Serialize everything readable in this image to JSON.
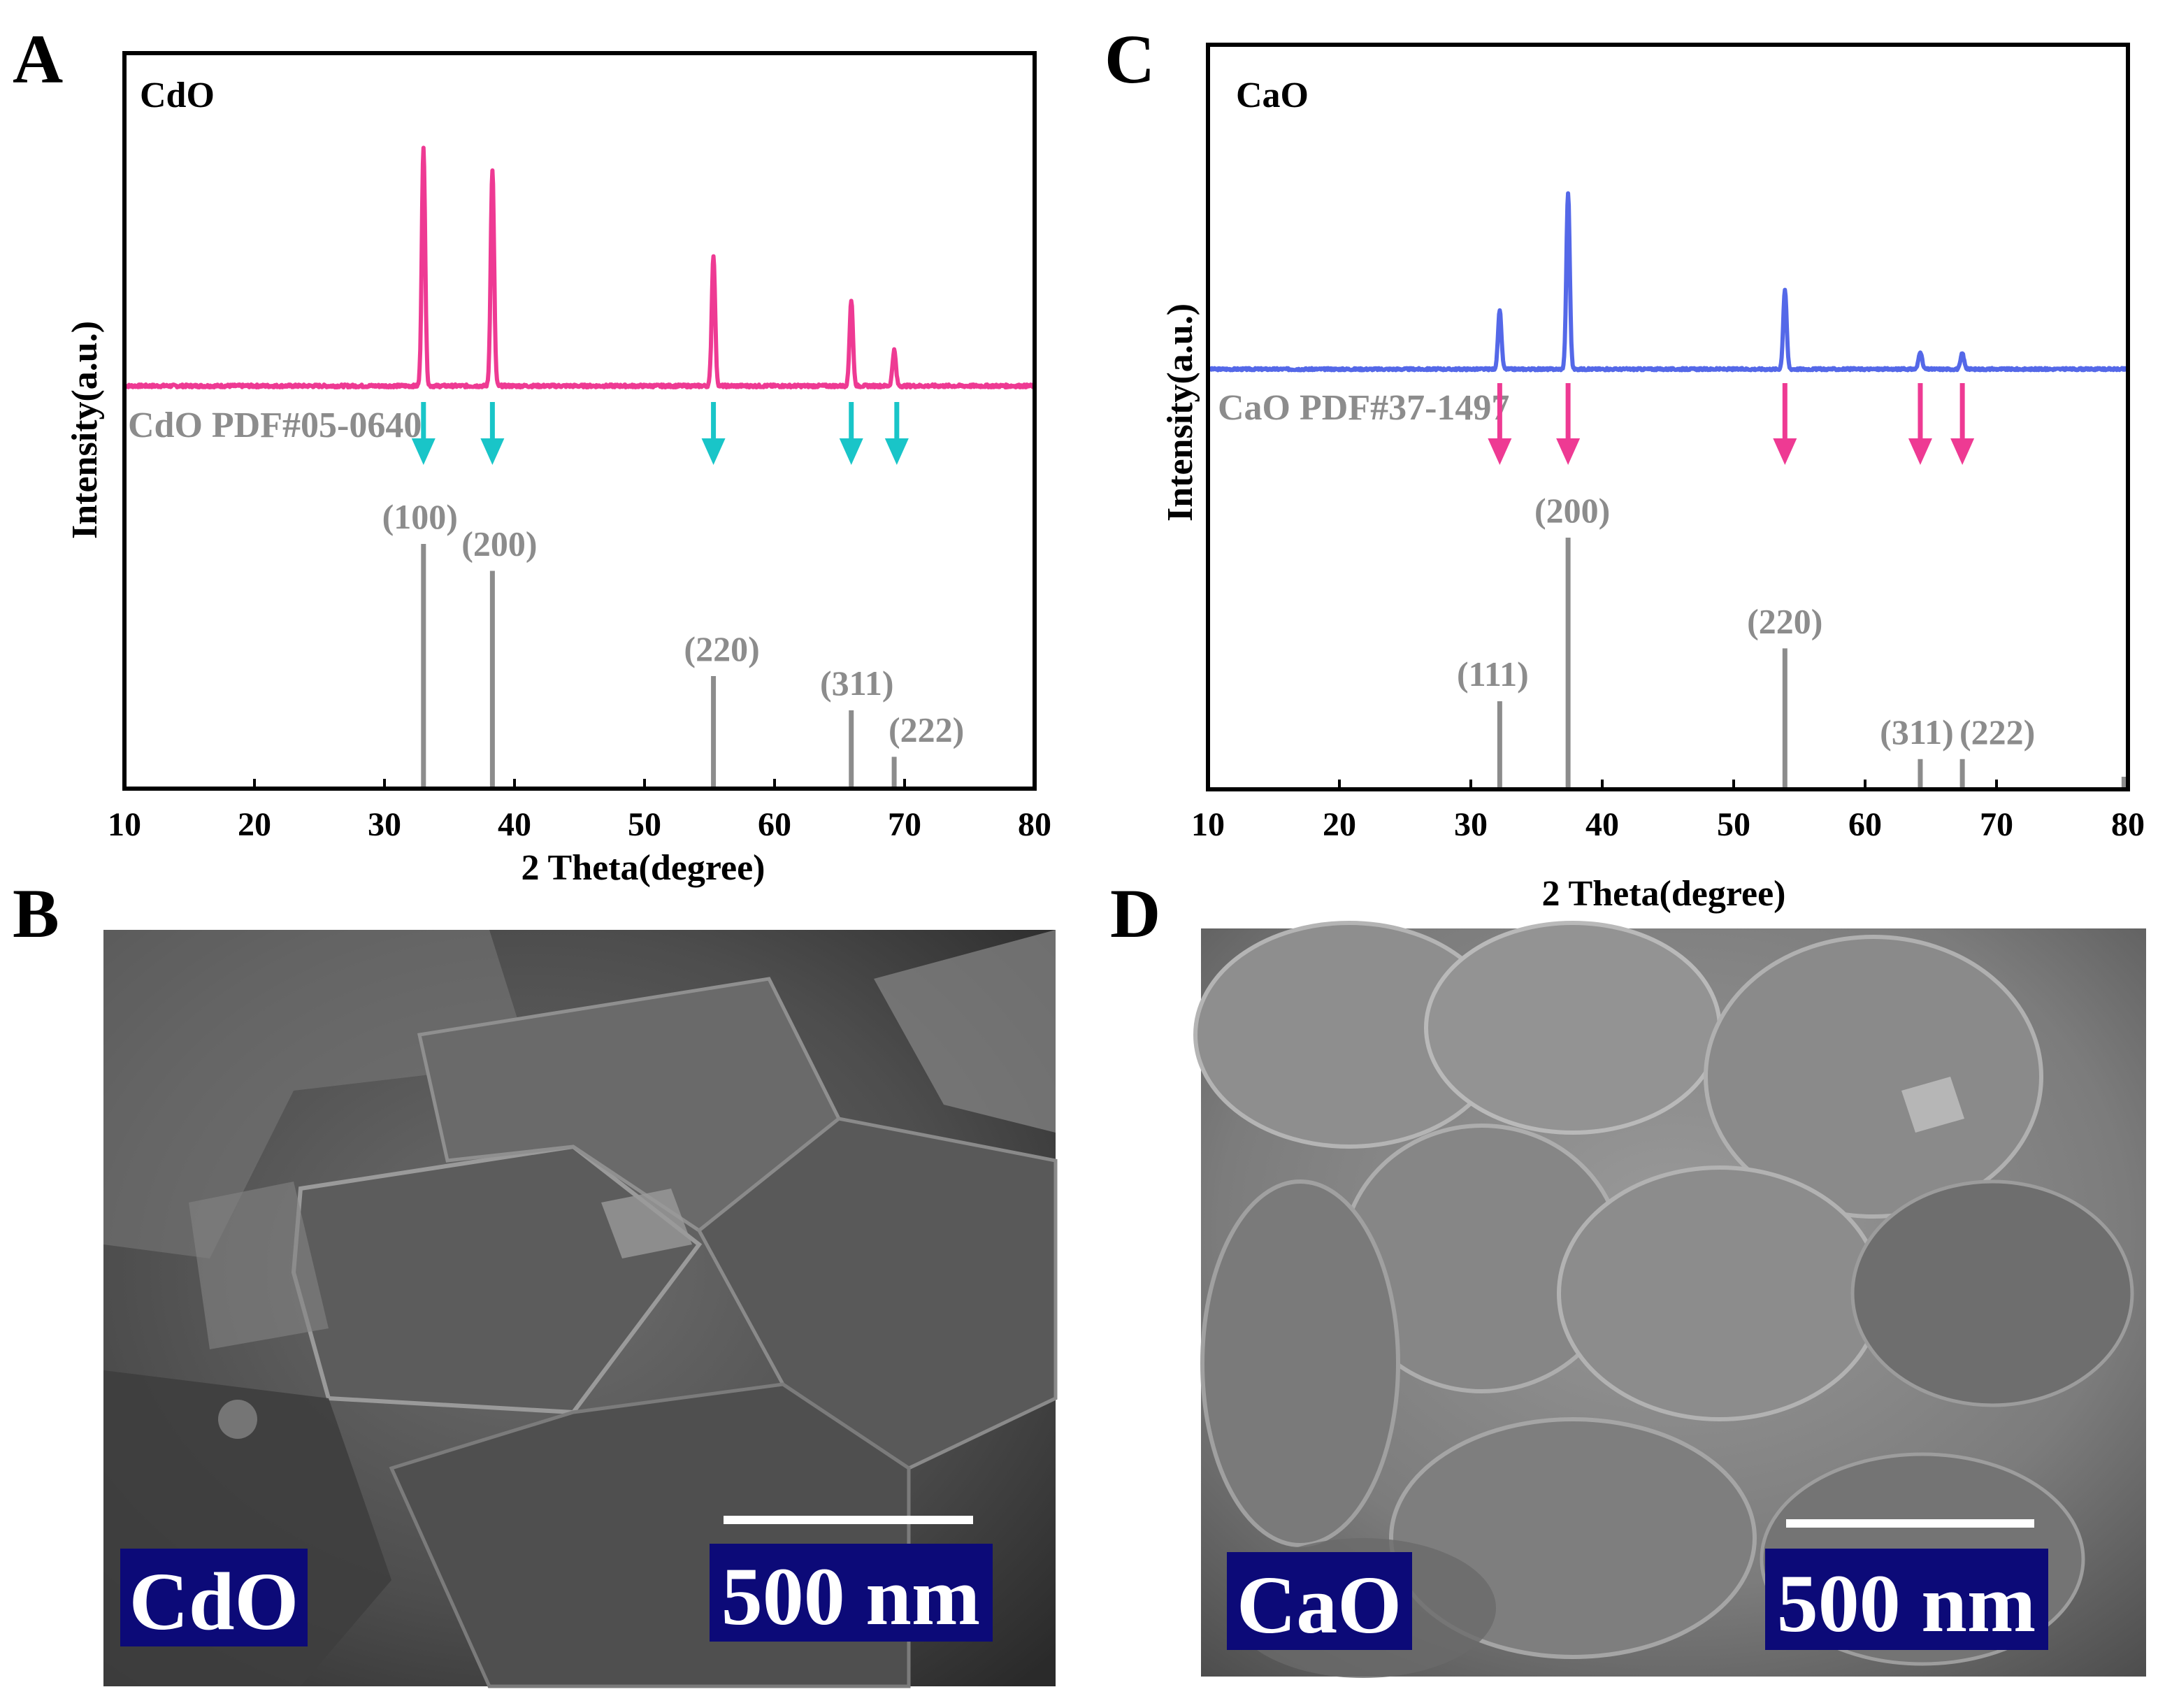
{
  "panels": {
    "a": "A",
    "b": "B",
    "c": "C",
    "d": "D"
  },
  "colors": {
    "cdo": "#ee3a93",
    "cao": "#5468e8",
    "cdo_arrow": "#19c5c8",
    "cao_arrow": "#ee3a93",
    "reference": "#8c8c8c",
    "sem_box": "#0c0a78"
  },
  "chart_data": [
    {
      "type": "line",
      "panel": "A",
      "xlabel": "2 Theta(degree)",
      "ylabel": "Intensity(a.u.)",
      "xlim": [
        10,
        80
      ],
      "x_ticks": [
        10,
        20,
        30,
        40,
        50,
        60,
        70,
        80
      ],
      "series": [
        {
          "name": "CdO",
          "peaks": [
            {
              "x": 33.0,
              "h": 1.0
            },
            {
              "x": 38.3,
              "h": 0.91
            },
            {
              "x": 55.3,
              "h": 0.55
            },
            {
              "x": 65.9,
              "h": 0.36
            },
            {
              "x": 69.2,
              "h": 0.15
            }
          ]
        }
      ],
      "reference": {
        "name": "CdO PDF#05-0640",
        "lines": [
          {
            "x": 33.0,
            "h": 1.0,
            "hkl": "(100)"
          },
          {
            "x": 38.3,
            "h": 0.89,
            "hkl": "(200)"
          },
          {
            "x": 55.3,
            "h": 0.46,
            "hkl": "(220)"
          },
          {
            "x": 65.9,
            "h": 0.32,
            "hkl": "(311)"
          },
          {
            "x": 69.2,
            "h": 0.13,
            "hkl": "(222)"
          }
        ]
      },
      "arrows_x": [
        33.0,
        38.3,
        55.3,
        65.9,
        69.4
      ]
    },
    {
      "type": "line",
      "panel": "C",
      "xlabel": "2 Theta(degree)",
      "ylabel": "Intensity(a.u.)",
      "xlim": [
        10,
        80
      ],
      "x_ticks": [
        10,
        20,
        30,
        40,
        50,
        60,
        70,
        80
      ],
      "series": [
        {
          "name": "CaO",
          "peaks": [
            {
              "x": 32.2,
              "h": 0.33
            },
            {
              "x": 37.4,
              "h": 1.0
            },
            {
              "x": 53.9,
              "h": 0.45
            },
            {
              "x": 64.2,
              "h": 0.1
            },
            {
              "x": 67.4,
              "h": 0.09
            }
          ]
        }
      ],
      "reference": {
        "name": "CaO PDF#37-1497",
        "lines": [
          {
            "x": 32.2,
            "h": 0.35,
            "hkl": "(111)"
          },
          {
            "x": 37.4,
            "h": 1.0,
            "hkl": "(200)"
          },
          {
            "x": 53.9,
            "h": 0.56,
            "hkl": "(220)"
          },
          {
            "x": 64.2,
            "h": 0.12,
            "hkl": "(311)"
          },
          {
            "x": 67.4,
            "h": 0.12,
            "hkl": "(222)"
          },
          {
            "x": 79.7,
            "h": 0.05,
            "hkl": ""
          }
        ]
      },
      "arrows_x": [
        32.2,
        37.4,
        53.9,
        64.2,
        67.4
      ]
    }
  ],
  "sem": [
    {
      "panel": "B",
      "sample_label": "CdO",
      "scale_label": "500 nm"
    },
    {
      "panel": "D",
      "sample_label": "CaO",
      "scale_label": "500 nm"
    }
  ]
}
